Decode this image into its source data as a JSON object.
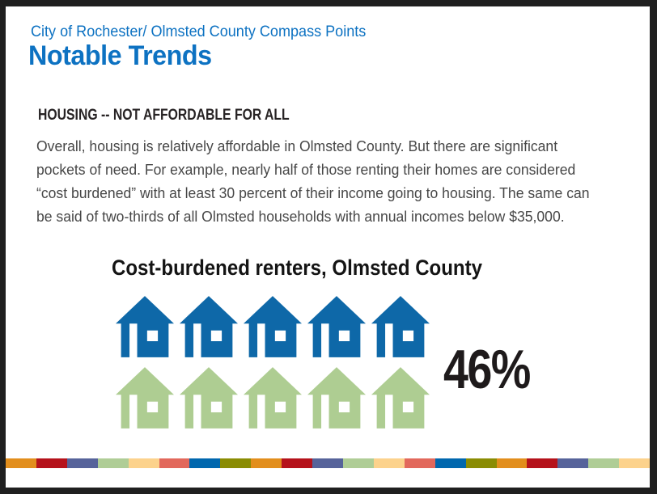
{
  "frame": {
    "background_color": "#1F1F1F",
    "slide_background_color": "#FFFFFF"
  },
  "slide": {
    "eyebrow": "City of Rochester/ Olmsted County Compass Points",
    "title": "Notable Trends",
    "accent_color": "#0D72C2",
    "section_heading": "HOUSING -- NOT AFFORDABLE FOR ALL",
    "paragraph_lines": [
      "Overall, housing is relatively affordable in Olmsted County. But there are significant",
      "pockets of need. For example, nearly half of those renting their homes are considered",
      "“cost burdened” with at least 30 percent of their income going to housing. The same can",
      "be said of two-thirds of all Olmsted households with annual incomes below $35,000."
    ]
  },
  "chart_data": {
    "type": "pictograph",
    "title": "Cost-burdened renters, Olmsted County",
    "value": 46,
    "value_label": "46%",
    "icon": "house-icon",
    "icon_rows": [
      {
        "color": "#0E68A8",
        "count": 5
      },
      {
        "color": "#AECD92",
        "count": 5
      }
    ],
    "total_icons": 10
  },
  "footer_strip": {
    "colors": [
      "#E28E1C",
      "#B5121B",
      "#56639A",
      "#AFCD96",
      "#FCD28C",
      "#E2685C",
      "#0067AE",
      "#8A8C03",
      "#E28E1C",
      "#B5121B",
      "#56639A",
      "#AFCD96",
      "#FCD28C",
      "#E2685C",
      "#0067AE",
      "#8A8C03",
      "#E28E1C",
      "#B5121B",
      "#56639A",
      "#AFCD96",
      "#FCD28C"
    ]
  }
}
